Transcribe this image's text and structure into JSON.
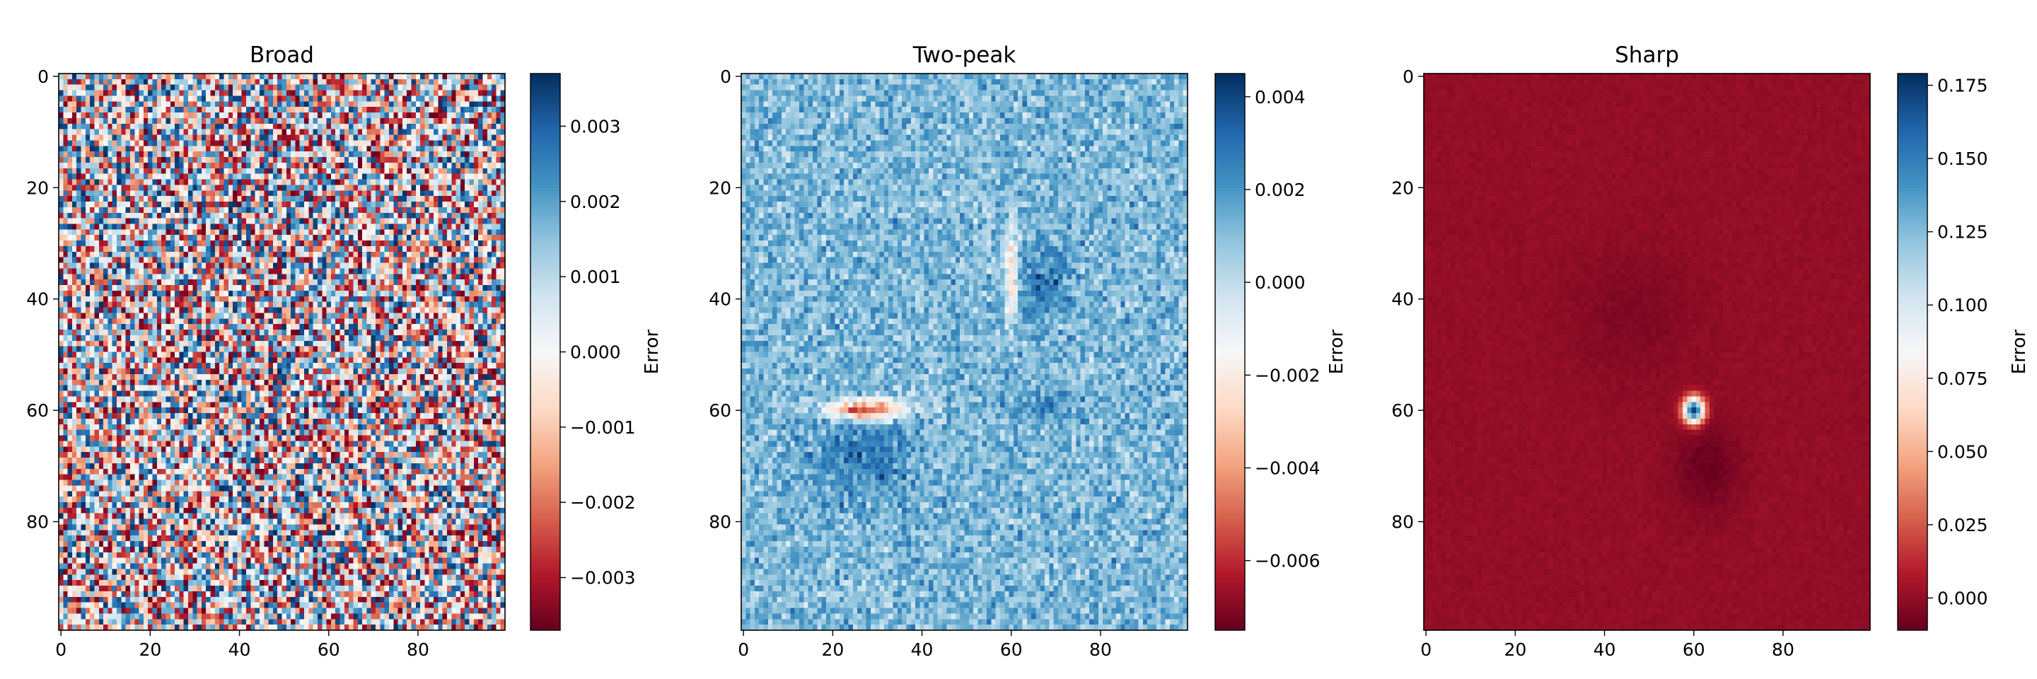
{
  "figure": {
    "suptitle": "",
    "colormap": "RdBu",
    "colormap_low_color": "#67001f",
    "colormap_high_color": "#053061"
  },
  "chart_data": [
    {
      "type": "heatmap",
      "title": "Broad",
      "rows": 100,
      "cols": 100,
      "xlim": [
        -0.5,
        99.5
      ],
      "ylim": [
        99.5,
        -0.5
      ],
      "xticks": [
        0,
        20,
        40,
        60,
        80
      ],
      "yticks": [
        0,
        20,
        40,
        60,
        80
      ],
      "colorbar": {
        "label": "Error",
        "vmin": -0.0037,
        "vmax": 0.0037,
        "ticks": [
          -0.003,
          -0.002,
          -0.001,
          0.0,
          0.001,
          0.002,
          0.003
        ],
        "tick_labels": [
          "−0.003",
          "−0.002",
          "−0.001",
          "0.000",
          "0.001",
          "0.002",
          "0.003"
        ]
      },
      "pattern": "uniform random noise centred on 0 (no structure)",
      "noise_amplitude": 0.0037
    },
    {
      "type": "heatmap",
      "title": "Two-peak",
      "rows": 100,
      "cols": 100,
      "xlim": [
        -0.5,
        99.5
      ],
      "ylim": [
        99.5,
        -0.5
      ],
      "xticks": [
        0,
        20,
        40,
        60,
        80
      ],
      "yticks": [
        0,
        20,
        40,
        60,
        80
      ],
      "colorbar": {
        "label": "Error",
        "vmin": -0.0075,
        "vmax": 0.0045,
        "ticks": [
          -0.006,
          -0.004,
          -0.002,
          0.0,
          0.002,
          0.004
        ],
        "tick_labels": [
          "−0.006",
          "−0.004",
          "−0.002",
          "0.000",
          "0.002",
          "0.004"
        ]
      },
      "background_mean": 0.0012,
      "noise_amplitude": 0.0013,
      "features": [
        {
          "kind": "negative streak, horizontal",
          "row": 60,
          "col_range": [
            20,
            35
          ],
          "min_value": -0.007
        },
        {
          "kind": "negative streak, vertical",
          "col": 60,
          "row_range": [
            27,
            44
          ],
          "min_value": -0.004
        },
        {
          "kind": "positive lobe",
          "center": [
            68,
            27
          ],
          "value": 0.0025
        },
        {
          "kind": "positive lobe",
          "center": [
            37,
            67
          ],
          "value": 0.0025
        },
        {
          "kind": "positive lobe",
          "center": [
            59,
            67
          ],
          "value": 0.0018
        }
      ]
    },
    {
      "type": "heatmap",
      "title": "Sharp",
      "rows": 100,
      "cols": 100,
      "xlim": [
        -0.5,
        99.5
      ],
      "ylim": [
        99.5,
        -0.5
      ],
      "xticks": [
        0,
        20,
        40,
        60,
        80
      ],
      "yticks": [
        0,
        20,
        40,
        60,
        80
      ],
      "colorbar": {
        "label": "Error",
        "vmin": -0.011,
        "vmax": 0.179,
        "ticks": [
          0.0,
          0.025,
          0.05,
          0.075,
          0.1,
          0.125,
          0.15,
          0.175
        ],
        "tick_labels": [
          "0.000",
          "0.025",
          "0.050",
          "0.075",
          "0.100",
          "0.125",
          "0.150",
          "0.175"
        ]
      },
      "background_mean": 0.0,
      "noise_amplitude": 0.002,
      "features": [
        {
          "kind": "sharp positive peak",
          "center": [
            60,
            60
          ],
          "peak_value": 0.175,
          "radius": 2
        },
        {
          "kind": "diffuse negative shadow",
          "center": [
            70,
            63
          ],
          "value": -0.01
        },
        {
          "kind": "diffuse negative shadow",
          "center": [
            43,
            46
          ],
          "value": -0.005
        }
      ]
    }
  ]
}
